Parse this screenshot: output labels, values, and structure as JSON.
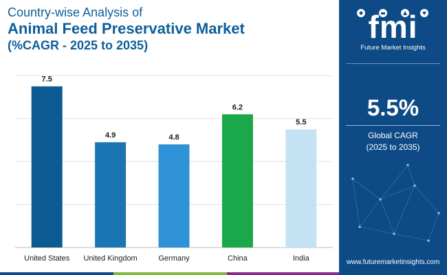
{
  "title": {
    "line1": "Country-wise Analysis of",
    "line2": "Animal Feed Preservative Market",
    "line3": "(%CAGR - 2025 to 2035)"
  },
  "brand": {
    "logo_text": "fmi",
    "name": "Future Market Insights",
    "url": "www.futuremarketinsights.com"
  },
  "highlight": {
    "value": "5.5%",
    "label_line1": "Global CAGR",
    "label_line2": "(2025 to 2035)"
  },
  "colors": {
    "title": "#0d5e9a",
    "panel": "#0d4a86",
    "bottom_bar": [
      "#0d4a86",
      "#7dbb42",
      "#2f8fd6",
      "#8a2a8c"
    ]
  },
  "chart_data": {
    "type": "bar",
    "title": "Animal Feed Preservative Market (%CAGR - 2025 to 2035)",
    "categories": [
      "United States",
      "United Kingdom",
      "Germany",
      "China",
      "India"
    ],
    "values": [
      7.5,
      4.9,
      4.8,
      6.2,
      5.5
    ],
    "value_labels": [
      "7.5",
      "4.9",
      "4.8",
      "6.2",
      "5.5"
    ],
    "bar_colors": [
      "#0b5a92",
      "#1b75b3",
      "#2f92d6",
      "#1aa84a",
      "#c5e2f5"
    ],
    "ylim": [
      0,
      8
    ],
    "grid": true,
    "xlabel": "",
    "ylabel": ""
  }
}
